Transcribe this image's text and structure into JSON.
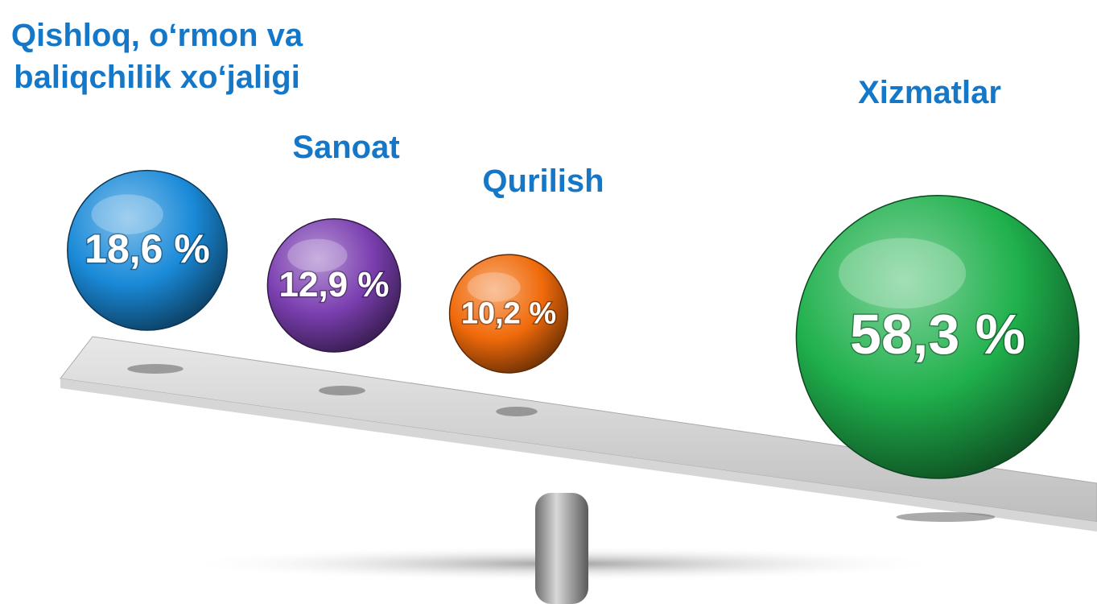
{
  "chart_data": {
    "type": "bubble",
    "categories": [
      "Qishloq, o‘rmon va baliqchilik xo‘jaligi",
      "Sanoat",
      "Qurilish",
      "Xizmatlar"
    ],
    "values": [
      18.6,
      12.9,
      10.2,
      58.3
    ],
    "value_labels": [
      "18,6 %",
      "12,9 %",
      "10,2 %",
      "58,3 %"
    ],
    "colors": [
      "#1a8ad8",
      "#7b3fb0",
      "#f06a0a",
      "#1fb04c"
    ]
  }
}
